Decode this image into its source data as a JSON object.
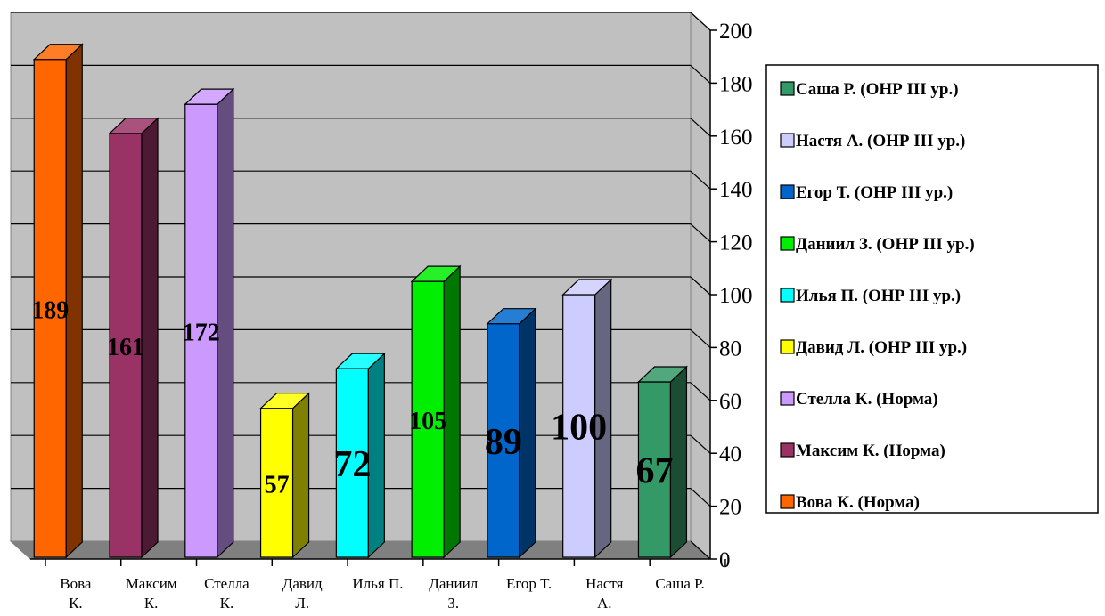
{
  "chart_data": {
    "type": "bar",
    "title": "",
    "xlabel": "",
    "ylabel": "",
    "ylim": [
      0,
      200
    ],
    "yticks": [
      0,
      20,
      40,
      60,
      80,
      100,
      120,
      140,
      160,
      180,
      200
    ],
    "grid": true,
    "legend_position": "right",
    "series": [
      {
        "name": "Вова К. (Норма)",
        "category": [
          "Вова",
          "К."
        ],
        "value": 189,
        "value_label": "189",
        "color": "#FF6600"
      },
      {
        "name": "Максим К. (Норма)",
        "category": [
          "Максим",
          "К."
        ],
        "value": 161,
        "value_label": "161",
        "color": "#993366"
      },
      {
        "name": "Стелла К. (Норма)",
        "category": [
          "Стелла",
          "К."
        ],
        "value": 172,
        "value_label": "172",
        "color": "#CC99FF"
      },
      {
        "name": "Давид Л. (ОНР III ур.)",
        "category": [
          "Давид",
          "Л."
        ],
        "value": 57,
        "value_label": "57",
        "color": "#FFFF00"
      },
      {
        "name": "Илья П. (ОНР III ур.)",
        "category": [
          "Илья П."
        ],
        "value": 72,
        "value_label": "72",
        "color": "#00FFFF"
      },
      {
        "name": "Даниил З. (ОНР III ур.)",
        "category": [
          "Даниил",
          "З."
        ],
        "value": 105,
        "value_label": "105",
        "color": "#00EE00"
      },
      {
        "name": "Егор Т. (ОНР III ур.)",
        "category": [
          "Егор Т."
        ],
        "value": 89,
        "value_label": "89",
        "color": "#0066CC"
      },
      {
        "name": "Настя А. (ОНР III ур.)",
        "category": [
          "Настя",
          "А."
        ],
        "value": 100,
        "value_label": "100",
        "color": "#CCCCFF"
      },
      {
        "name": "Саша Р. (ОНР III ур.)",
        "category": [
          "Саша Р."
        ],
        "value": 67,
        "value_label": "67",
        "color": "#339966"
      }
    ],
    "legend_order": [
      8,
      7,
      6,
      5,
      4,
      3,
      2,
      1,
      0
    ]
  }
}
